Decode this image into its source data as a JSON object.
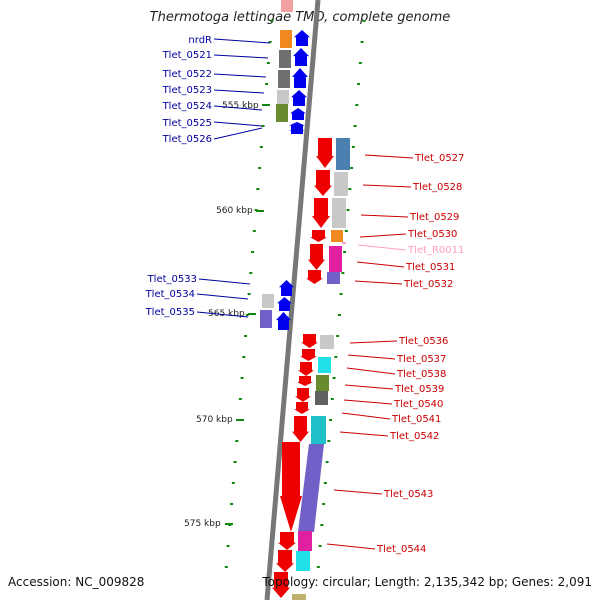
{
  "title": "Thermotoga lettingae TMO, complete genome",
  "footer": {
    "accession": "Accession: NC_009828",
    "summary": "Topology: circular; Length: 2,135,342 bp; Genes: 2,091"
  },
  "colors": {
    "forward": "#0000ee",
    "reverse": "#ee0000",
    "rna": "#ff9fbf",
    "backbone": "#777777",
    "ticks": "#118811"
  },
  "ticks": [
    {
      "label": "555 kbp"
    },
    {
      "label": "560 kbp"
    },
    {
      "label": "565 kbp"
    },
    {
      "label": "570 kbp"
    },
    {
      "label": "575 kbp"
    }
  ],
  "left_labels": [
    {
      "label": "nrdR"
    },
    {
      "label": "Tlet_0521"
    },
    {
      "label": "Tlet_0522"
    },
    {
      "label": "Tlet_0523"
    },
    {
      "label": "Tlet_0524"
    },
    {
      "label": "Tlet_0525"
    },
    {
      "label": "Tlet_0526"
    },
    {
      "label": "Tlet_0533"
    },
    {
      "label": "Tlet_0534"
    },
    {
      "label": "Tlet_0535"
    }
  ],
  "right_labels": [
    {
      "label": "Tlet_0527"
    },
    {
      "label": "Tlet_0528"
    },
    {
      "label": "Tlet_0529"
    },
    {
      "label": "Tlet_0530"
    },
    {
      "label": "Tlet_R0011"
    },
    {
      "label": "Tlet_0531"
    },
    {
      "label": "Tlet_0532"
    },
    {
      "label": "Tlet_0536"
    },
    {
      "label": "Tlet_0537"
    },
    {
      "label": "Tlet_0538"
    },
    {
      "label": "Tlet_0539"
    },
    {
      "label": "Tlet_0540"
    },
    {
      "label": "Tlet_0541"
    },
    {
      "label": "Tlet_0542"
    },
    {
      "label": "Tlet_0543"
    },
    {
      "label": "Tlet_0544"
    }
  ]
}
